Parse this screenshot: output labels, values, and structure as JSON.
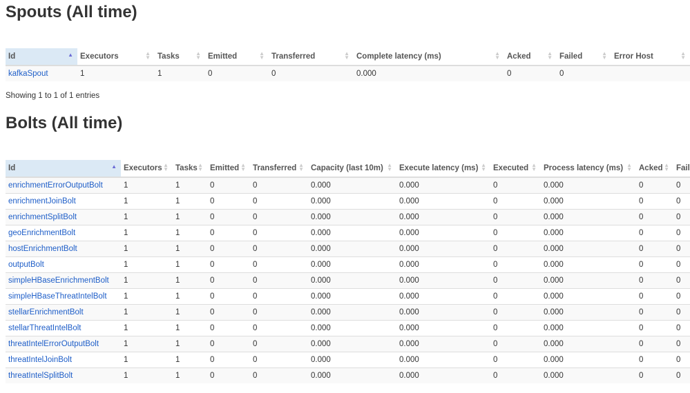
{
  "spouts": {
    "title": "Spouts (All time)",
    "columns": [
      "Id",
      "Executors",
      "Tasks",
      "Emitted",
      "Transferred",
      "Complete latency (ms)",
      "Acked",
      "Failed",
      "Error Host"
    ],
    "sorted_column": 0,
    "rows": [
      [
        "kafkaSpout",
        "1",
        "1",
        "0",
        "0",
        "0.000",
        "0",
        "0",
        ""
      ]
    ],
    "info": "Showing 1 to 1 of 1 entries"
  },
  "bolts": {
    "title": "Bolts (All time)",
    "columns": [
      "Id",
      "Executors",
      "Tasks",
      "Emitted",
      "Transferred",
      "Capacity (last 10m)",
      "Execute latency (ms)",
      "Executed",
      "Process latency (ms)",
      "Acked",
      "Failed"
    ],
    "sorted_column": 0,
    "rows": [
      [
        "enrichmentErrorOutputBolt",
        "1",
        "1",
        "0",
        "0",
        "0.000",
        "0.000",
        "0",
        "0.000",
        "0",
        "0"
      ],
      [
        "enrichmentJoinBolt",
        "1",
        "1",
        "0",
        "0",
        "0.000",
        "0.000",
        "0",
        "0.000",
        "0",
        "0"
      ],
      [
        "enrichmentSplitBolt",
        "1",
        "1",
        "0",
        "0",
        "0.000",
        "0.000",
        "0",
        "0.000",
        "0",
        "0"
      ],
      [
        "geoEnrichmentBolt",
        "1",
        "1",
        "0",
        "0",
        "0.000",
        "0.000",
        "0",
        "0.000",
        "0",
        "0"
      ],
      [
        "hostEnrichmentBolt",
        "1",
        "1",
        "0",
        "0",
        "0.000",
        "0.000",
        "0",
        "0.000",
        "0",
        "0"
      ],
      [
        "outputBolt",
        "1",
        "1",
        "0",
        "0",
        "0.000",
        "0.000",
        "0",
        "0.000",
        "0",
        "0"
      ],
      [
        "simpleHBaseEnrichmentBolt",
        "1",
        "1",
        "0",
        "0",
        "0.000",
        "0.000",
        "0",
        "0.000",
        "0",
        "0"
      ],
      [
        "simpleHBaseThreatIntelBolt",
        "1",
        "1",
        "0",
        "0",
        "0.000",
        "0.000",
        "0",
        "0.000",
        "0",
        "0"
      ],
      [
        "stellarEnrichmentBolt",
        "1",
        "1",
        "0",
        "0",
        "0.000",
        "0.000",
        "0",
        "0.000",
        "0",
        "0"
      ],
      [
        "stellarThreatIntelBolt",
        "1",
        "1",
        "0",
        "0",
        "0.000",
        "0.000",
        "0",
        "0.000",
        "0",
        "0"
      ],
      [
        "threatIntelErrorOutputBolt",
        "1",
        "1",
        "0",
        "0",
        "0.000",
        "0.000",
        "0",
        "0.000",
        "0",
        "0"
      ],
      [
        "threatIntelJoinBolt",
        "1",
        "1",
        "0",
        "0",
        "0.000",
        "0.000",
        "0",
        "0.000",
        "0",
        "0"
      ],
      [
        "threatIntelSplitBolt",
        "1",
        "1",
        "0",
        "0",
        "0.000",
        "0.000",
        "0",
        "0.000",
        "0",
        "0"
      ]
    ]
  },
  "colors": {
    "link": "#1e5ec8",
    "sorted_header_bg": "#dbe9f5",
    "stripe": "#f9f9f9"
  }
}
